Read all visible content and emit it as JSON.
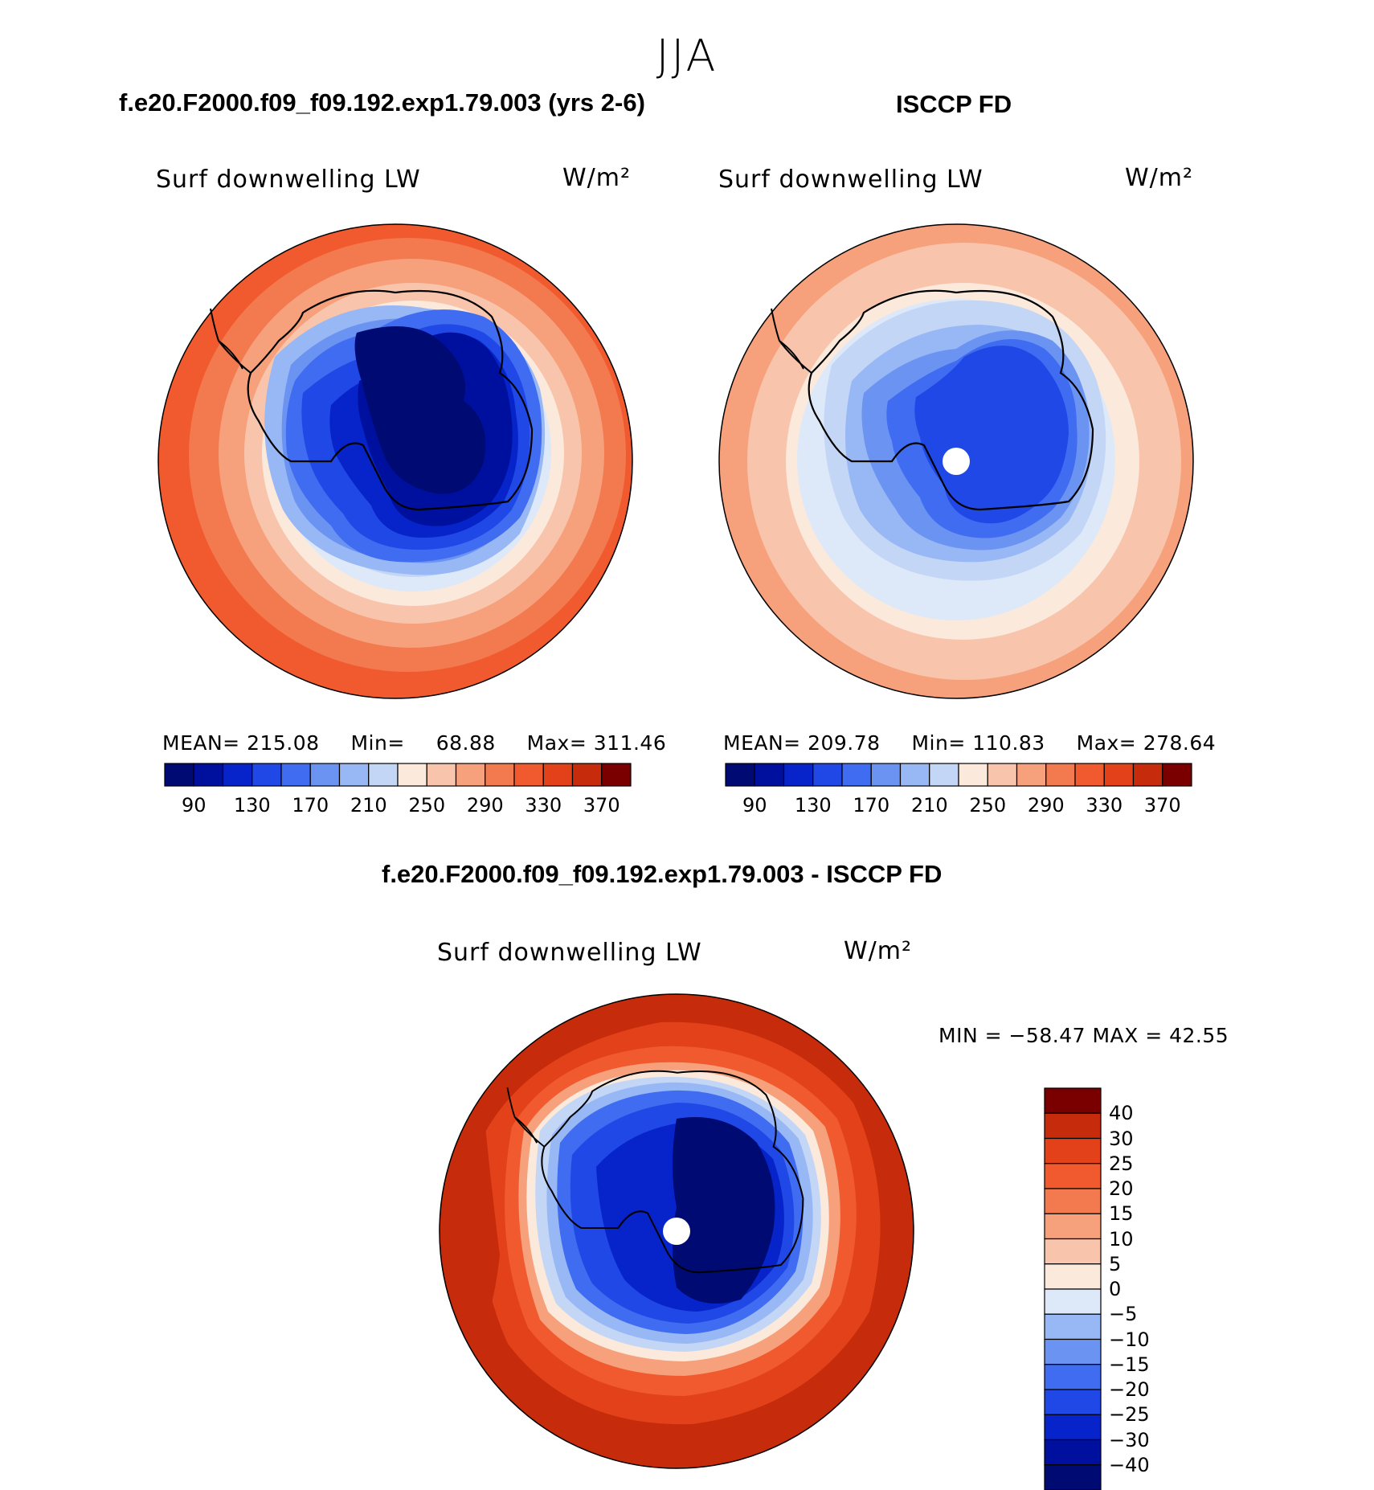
{
  "figure": {
    "season": "JJA",
    "colors": {
      "blues": [
        "#000a73",
        "#00109e",
        "#0624c9",
        "#1f48e6",
        "#3f6cf0",
        "#6b93f2",
        "#98b7f5",
        "#c3d6f5",
        "#dde9f8"
      ],
      "reds": [
        "#fbe9dc",
        "#f8c5ac",
        "#f6a07c",
        "#f3794f",
        "#f05a2e",
        "#e2411a",
        "#c62b0c",
        "#a11806",
        "#7a0000"
      ],
      "abs_scale": [
        "#000a73",
        "#00109e",
        "#0624c9",
        "#1f48e6",
        "#3f6cf0",
        "#6b93f2",
        "#98b7f5",
        "#c3d6f5",
        "#fbe9dc",
        "#f8c5ac",
        "#f6a07c",
        "#f3794f",
        "#f05a2e",
        "#e2411a",
        "#c62b0c",
        "#7a0000"
      ],
      "diff_scale": [
        "#000a73",
        "#00109e",
        "#0624c9",
        "#1f48e6",
        "#3f6cf0",
        "#6b93f2",
        "#98b7f5",
        "#dde9f8",
        "#fbe9dc",
        "#f8c5ac",
        "#f6a07c",
        "#f3794f",
        "#f05a2e",
        "#e2411a",
        "#c62b0c",
        "#7a0000"
      ]
    }
  },
  "panels": {
    "model": {
      "case": "f.e20.F2000.f09_f09.192.exp1.79.003 (yrs 2-6)",
      "variable": "Surf downwelling LW",
      "units": "W/m²",
      "mean_label": "MEAN=",
      "mean": "215.08",
      "min_label": "Min=",
      "min": "68.88",
      "max_label": "Max=",
      "max": "311.46"
    },
    "obs": {
      "case": "ISCCP FD",
      "variable": "Surf downwelling LW",
      "units": "W/m²",
      "mean_label": "MEAN=",
      "mean": "209.78",
      "min_label": "Min=",
      "min": "110.83",
      "max_label": "Max=",
      "max": "278.64"
    },
    "diff": {
      "case": "f.e20.F2000.f09_f09.192.exp1.79.003 - ISCCP FD",
      "variable": "Surf downwelling LW",
      "units": "W/m²",
      "minmax": "MIN = −58.47 MAX =  42.55"
    }
  },
  "colorbars": {
    "abs": {
      "levels": [
        90,
        110,
        130,
        150,
        170,
        190,
        210,
        230,
        250,
        270,
        290,
        310,
        330,
        350,
        370
      ],
      "tick_labels": [
        "90",
        "130",
        "170",
        "210",
        "250",
        "290",
        "330",
        "370"
      ]
    },
    "diff": {
      "levels": [
        -40,
        -30,
        -25,
        -20,
        -15,
        -10,
        -5,
        0,
        5,
        10,
        15,
        20,
        25,
        30,
        40
      ],
      "tick_labels": [
        "40",
        "30",
        "25",
        "20",
        "15",
        "10",
        "5",
        "0",
        "−5",
        "−10",
        "−15",
        "−20",
        "−25",
        "−30",
        "−40"
      ]
    }
  }
}
